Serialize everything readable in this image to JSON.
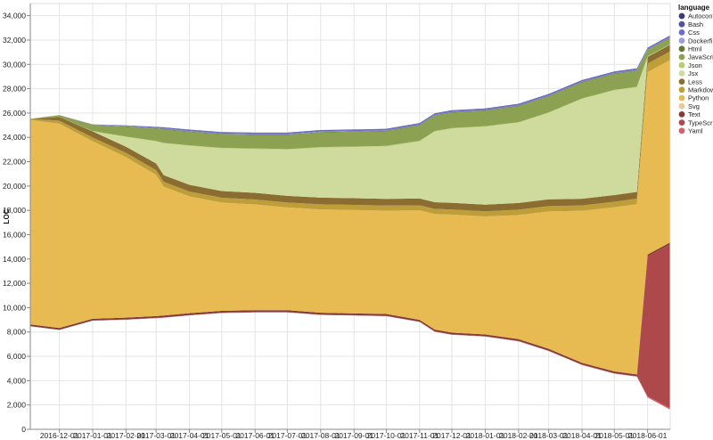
{
  "chart_data": {
    "type": "area",
    "stacked": "center",
    "ylabel": "LOC",
    "xlabel": "",
    "ylim": [
      0,
      35000
    ],
    "y_ticks": [
      0,
      2000,
      4000,
      6000,
      8000,
      10000,
      12000,
      14000,
      16000,
      18000,
      20000,
      22000,
      24000,
      26000,
      28000,
      30000,
      32000,
      34000
    ],
    "y_tick_labels": [
      "0",
      "2,000",
      "4,000",
      "6,000",
      "8,000",
      "10,000",
      "12,000",
      "14,000",
      "16,000",
      "18,000",
      "20,000",
      "22,000",
      "24,000",
      "26,000",
      "28,000",
      "30,000",
      "32,000",
      "34,000"
    ],
    "x_range": [
      "2016-11-04",
      "2018-06-22"
    ],
    "x_ticks": [
      "2016-12-01",
      "2017-01-01",
      "2017-02-01",
      "2017-03-01",
      "2017-04-01",
      "2017-05-01",
      "2017-06-01",
      "2017-07-01",
      "2017-08-01",
      "2017-09-01",
      "2017-10-01",
      "2017-11-01",
      "2017-12-01",
      "2018-01-01",
      "2018-02-01",
      "2018-03-01",
      "2018-04-01",
      "2018-05-01",
      "2018-06-01"
    ],
    "grid": true,
    "legend": {
      "title": "language",
      "position": "right",
      "entries": [
        {
          "name": "Autoconf",
          "color": "#393b79"
        },
        {
          "name": "Bash",
          "color": "#5254a3"
        },
        {
          "name": "Css",
          "color": "#6b6ecf"
        },
        {
          "name": "Dockerfile",
          "color": "#9c9ede"
        },
        {
          "name": "Html",
          "color": "#637939"
        },
        {
          "name": "JavaScript",
          "color": "#8ca252"
        },
        {
          "name": "Json",
          "color": "#b5cf6b"
        },
        {
          "name": "Jsx",
          "color": "#cedb9c"
        },
        {
          "name": "Less",
          "color": "#8c6d31"
        },
        {
          "name": "Markdown",
          "color": "#bd9e39"
        },
        {
          "name": "Python",
          "color": "#e7ba52"
        },
        {
          "name": "Svg",
          "color": "#e7cb94"
        },
        {
          "name": "Text",
          "color": "#843c39"
        },
        {
          "name": "TypeScript",
          "color": "#ad494a"
        },
        {
          "name": "Yaml",
          "color": "#d6616b"
        }
      ]
    },
    "x": [
      "2016-11-04",
      "2016-12-01",
      "2017-01-01",
      "2017-02-01",
      "2017-03-01",
      "2017-03-08",
      "2017-04-01",
      "2017-05-01",
      "2017-06-01",
      "2017-07-01",
      "2017-08-01",
      "2017-09-01",
      "2017-10-01",
      "2017-11-01",
      "2017-11-15",
      "2017-12-01",
      "2018-01-01",
      "2018-02-01",
      "2018-03-01",
      "2018-04-01",
      "2018-05-01",
      "2018-05-22",
      "2018-06-01",
      "2018-06-22"
    ],
    "series": [
      {
        "name": "Autoconf",
        "values": [
          0,
          0,
          0,
          0,
          0,
          0,
          0,
          0,
          0,
          0,
          0,
          0,
          0,
          0,
          0,
          0,
          0,
          0,
          0,
          0,
          0,
          0,
          0,
          0
        ]
      },
      {
        "name": "Bash",
        "values": [
          0,
          0,
          10,
          20,
          40,
          40,
          40,
          50,
          50,
          50,
          50,
          50,
          50,
          60,
          60,
          60,
          60,
          60,
          60,
          60,
          60,
          60,
          60,
          60
        ]
      },
      {
        "name": "Css",
        "values": [
          0,
          0,
          20,
          40,
          60,
          70,
          80,
          80,
          80,
          80,
          80,
          80,
          80,
          80,
          80,
          80,
          80,
          80,
          80,
          80,
          80,
          80,
          80,
          80
        ]
      },
      {
        "name": "Dockerfile",
        "values": [
          0,
          0,
          0,
          20,
          20,
          20,
          20,
          20,
          20,
          20,
          20,
          20,
          20,
          20,
          20,
          20,
          20,
          20,
          20,
          20,
          20,
          20,
          20,
          20
        ]
      },
      {
        "name": "Html",
        "values": [
          0,
          0,
          20,
          40,
          40,
          50,
          50,
          50,
          50,
          50,
          50,
          50,
          50,
          50,
          50,
          50,
          50,
          50,
          50,
          50,
          50,
          50,
          50,
          50
        ]
      },
      {
        "name": "JavaScript",
        "values": [
          0,
          150,
          500,
          800,
          1000,
          1100,
          1100,
          1100,
          1100,
          1150,
          1200,
          1200,
          1200,
          1250,
          1250,
          1250,
          1250,
          1300,
          1300,
          1300,
          1300,
          1300,
          500,
          500
        ]
      },
      {
        "name": "Json",
        "values": [
          0,
          0,
          30,
          40,
          50,
          50,
          50,
          50,
          50,
          50,
          50,
          50,
          50,
          50,
          50,
          50,
          50,
          50,
          50,
          50,
          50,
          50,
          50,
          50
        ]
      },
      {
        "name": "Jsx",
        "values": [
          0,
          0,
          0,
          800,
          1800,
          2600,
          3200,
          3500,
          3600,
          3800,
          4100,
          4200,
          4300,
          4700,
          5800,
          6100,
          6400,
          6600,
          7100,
          8200,
          8600,
          8600,
          0,
          0
        ]
      },
      {
        "name": "Less",
        "values": [
          0,
          300,
          500,
          500,
          550,
          550,
          550,
          550,
          550,
          550,
          550,
          550,
          550,
          550,
          550,
          550,
          550,
          550,
          550,
          550,
          550,
          550,
          550,
          550
        ]
      },
      {
        "name": "Markdown",
        "values": [
          100,
          250,
          300,
          350,
          400,
          400,
          400,
          400,
          400,
          400,
          420,
          420,
          420,
          420,
          420,
          420,
          420,
          440,
          440,
          440,
          450,
          450,
          700,
          700
        ]
      },
      {
        "name": "Python",
        "values": [
          16800,
          16800,
          14600,
          13200,
          11600,
          10600,
          9600,
          8900,
          8700,
          8450,
          8500,
          8500,
          8500,
          9000,
          9500,
          9700,
          9700,
          10200,
          11300,
          12500,
          13500,
          14000,
          15000,
          15000
        ]
      },
      {
        "name": "Svg",
        "values": [
          0,
          0,
          0,
          0,
          0,
          0,
          0,
          0,
          0,
          0,
          0,
          0,
          0,
          0,
          0,
          0,
          0,
          0,
          0,
          0,
          0,
          0,
          0,
          0
        ]
      },
      {
        "name": "Text",
        "values": [
          150,
          150,
          150,
          150,
          150,
          150,
          150,
          150,
          150,
          150,
          150,
          150,
          150,
          150,
          150,
          150,
          150,
          150,
          150,
          150,
          150,
          150,
          150,
          150
        ]
      },
      {
        "name": "TypeScript",
        "values": [
          0,
          0,
          0,
          0,
          0,
          0,
          0,
          0,
          0,
          0,
          0,
          0,
          0,
          0,
          0,
          0,
          0,
          0,
          0,
          0,
          0,
          0,
          11500,
          13500
        ]
      },
      {
        "name": "Yaml",
        "values": [
          0,
          0,
          10,
          20,
          30,
          30,
          30,
          30,
          30,
          30,
          30,
          30,
          30,
          30,
          30,
          30,
          30,
          30,
          30,
          30,
          30,
          30,
          100,
          100
        ]
      }
    ]
  }
}
